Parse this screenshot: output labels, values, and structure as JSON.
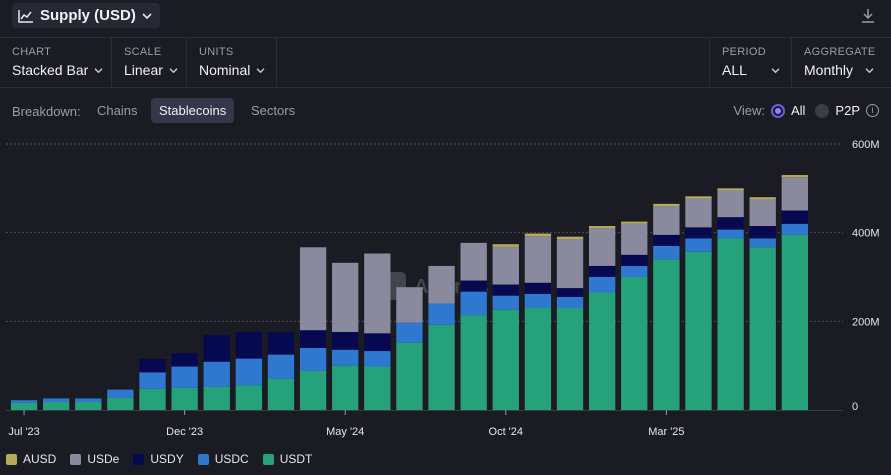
{
  "header": {
    "title": "Supply (USD)"
  },
  "controls": [
    {
      "label": "CHART",
      "value": "Stacked Bar"
    },
    {
      "label": "SCALE",
      "value": "Linear"
    },
    {
      "label": "UNITS",
      "value": "Nominal"
    },
    {
      "label": "PERIOD",
      "value": "ALL"
    },
    {
      "label": "AGGREGATE",
      "value": "Monthly"
    }
  ],
  "breakdown": {
    "label": "Breakdown:",
    "options": [
      "Chains",
      "Stablecoins",
      "Sectors"
    ],
    "selected": "Stablecoins"
  },
  "view": {
    "label": "View:",
    "all": "All",
    "p2p": "P2P",
    "info": "i"
  },
  "watermark": "Artemis",
  "colors": {
    "AUSD": "#b5a95a",
    "USDe": "#8a8a9e",
    "USDY": "#06094f",
    "USDC": "#2f78cf",
    "USDT": "#25a27a",
    "accent": "#6c5ce7"
  },
  "chart_data": {
    "type": "bar",
    "stacked": true,
    "categories": [
      "Jul '23",
      "Aug '23",
      "Sep '23",
      "Oct '23",
      "Nov '23",
      "Dec '23",
      "Jan '24",
      "Feb '24",
      "Mar '24",
      "Apr '24",
      "May '24",
      "Jun '24",
      "Jul '24",
      "Aug '24",
      "Sep '24",
      "Oct '24",
      "Nov '24",
      "Dec '24",
      "Jan '25",
      "Feb '25",
      "Mar '25",
      "Apr '25",
      "May '25",
      "Jun '25",
      "Jul '25",
      "Aug '25"
    ],
    "x_tick_labels": [
      "Jul '23",
      "Dec '23",
      "May '24",
      "Oct '24",
      "Mar '25"
    ],
    "x_tick_index": [
      0,
      5,
      10,
      15,
      20
    ],
    "yticks": [
      0,
      200,
      400,
      600
    ],
    "ytick_labels": [
      "0",
      "200M",
      "400M",
      "600M"
    ],
    "ylim": [
      0,
      600
    ],
    "unit": "M USD",
    "grid": true,
    "legend_position": "bottom-left",
    "series": [
      {
        "name": "USDT",
        "values": [
          16,
          18,
          18,
          28,
          48,
          50,
          52,
          56,
          70,
          88,
          100,
          98,
          152,
          192,
          214,
          226,
          230,
          230,
          265,
          300,
          340,
          357,
          387,
          367,
          395,
          0
        ]
      },
      {
        "name": "USDC",
        "values": [
          6,
          8,
          8,
          18,
          37,
          48,
          57,
          60,
          55,
          52,
          36,
          35,
          45,
          48,
          53,
          32,
          32,
          25,
          35,
          25,
          30,
          30,
          20,
          20,
          25,
          0
        ]
      },
      {
        "name": "USDY",
        "values": [
          0,
          0,
          0,
          0,
          30,
          30,
          60,
          60,
          50,
          40,
          40,
          40,
          0,
          0,
          25,
          25,
          25,
          20,
          25,
          25,
          25,
          25,
          28,
          28,
          30,
          0
        ]
      },
      {
        "name": "USDe",
        "values": [
          0,
          0,
          0,
          0,
          0,
          0,
          0,
          0,
          0,
          187,
          156,
          180,
          80,
          85,
          85,
          85,
          105,
          110,
          85,
          70,
          65,
          65,
          60,
          60,
          75,
          0
        ]
      },
      {
        "name": "AUSD",
        "values": [
          0,
          0,
          0,
          0,
          0,
          0,
          0,
          0,
          0,
          0,
          0,
          0,
          0,
          0,
          0,
          6,
          6,
          6,
          5,
          5,
          5,
          5,
          5,
          5,
          5,
          0
        ]
      }
    ]
  }
}
